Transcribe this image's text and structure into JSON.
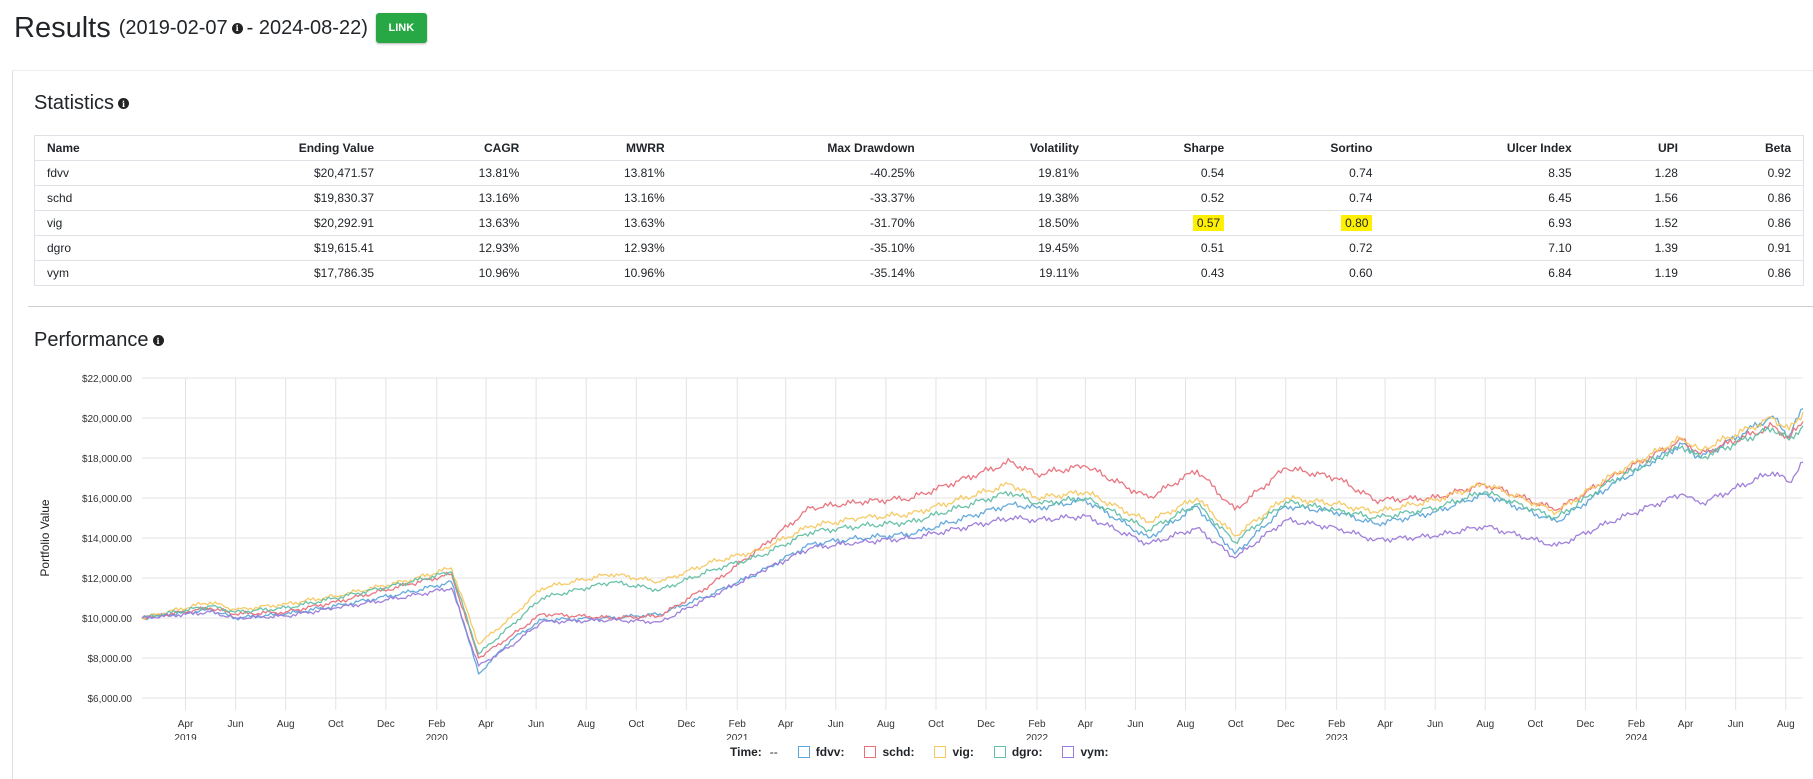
{
  "header": {
    "title": "Results",
    "date_start": "(2019-02-07",
    "date_end": "- 2024-08-22)",
    "link_label": "LINK"
  },
  "statistics": {
    "title": "Statistics",
    "columns": [
      "Name",
      "Ending Value",
      "CAGR",
      "MWRR",
      "Max Drawdown",
      "Volatility",
      "Sharpe",
      "Sortino",
      "Ulcer Index",
      "UPI",
      "Beta"
    ],
    "rows": [
      [
        "fdvv",
        "$20,471.57",
        "13.81%",
        "13.81%",
        "-40.25%",
        "19.81%",
        "0.54",
        "0.74",
        "8.35",
        "1.28",
        "0.92"
      ],
      [
        "schd",
        "$19,830.37",
        "13.16%",
        "13.16%",
        "-33.37%",
        "19.38%",
        "0.52",
        "0.74",
        "6.45",
        "1.56",
        "0.86"
      ],
      [
        "vig",
        "$20,292.91",
        "13.63%",
        "13.63%",
        "-31.70%",
        "18.50%",
        "0.57",
        "0.80",
        "6.93",
        "1.52",
        "0.86"
      ],
      [
        "dgro",
        "$19,615.41",
        "12.93%",
        "12.93%",
        "-35.10%",
        "19.45%",
        "0.51",
        "0.72",
        "7.10",
        "1.39",
        "0.91"
      ],
      [
        "vym",
        "$17,786.35",
        "10.96%",
        "10.96%",
        "-35.14%",
        "19.11%",
        "0.43",
        "0.60",
        "6.84",
        "1.19",
        "0.86"
      ]
    ],
    "highlight_color": "#ffef00",
    "highlighted_cells": [
      [
        2,
        6
      ],
      [
        2,
        7
      ]
    ]
  },
  "performance": {
    "title": "Performance"
  },
  "legend": {
    "time_label": "Time:",
    "time_value": "--",
    "items": [
      {
        "label": "fdvv:",
        "color": "#5da5da"
      },
      {
        "label": "schd:",
        "color": "#e8707a"
      },
      {
        "label": "vig:",
        "color": "#f5c860"
      },
      {
        "label": "dgro:",
        "color": "#63bfa5"
      },
      {
        "label": "vym:",
        "color": "#9b7ad9"
      }
    ]
  },
  "chart_data": {
    "type": "line",
    "ylabel": "Portfolio Value",
    "ylim": [
      6000,
      22000
    ],
    "y_ticks": [
      "$6,000.00",
      "$8,000.00",
      "$10,000.00",
      "$12,000.00",
      "$14,000.00",
      "$16,000.00",
      "$18,000.00",
      "$20,000.00",
      "$22,000.00"
    ],
    "y_tick_values": [
      6000,
      8000,
      10000,
      12000,
      14000,
      16000,
      18000,
      20000,
      22000
    ],
    "x_range": [
      "2019-02-07",
      "2024-08-22"
    ],
    "x_ticks": [
      {
        "date": "2019-04-01",
        "month": "Apr",
        "year": "2019"
      },
      {
        "date": "2019-06-01",
        "month": "Jun"
      },
      {
        "date": "2019-08-01",
        "month": "Aug"
      },
      {
        "date": "2019-10-01",
        "month": "Oct"
      },
      {
        "date": "2019-12-01",
        "month": "Dec"
      },
      {
        "date": "2020-02-01",
        "month": "Feb",
        "year": "2020"
      },
      {
        "date": "2020-04-01",
        "month": "Apr"
      },
      {
        "date": "2020-06-01",
        "month": "Jun"
      },
      {
        "date": "2020-08-01",
        "month": "Aug"
      },
      {
        "date": "2020-10-01",
        "month": "Oct"
      },
      {
        "date": "2020-12-01",
        "month": "Dec"
      },
      {
        "date": "2021-02-01",
        "month": "Feb",
        "year": "2021"
      },
      {
        "date": "2021-04-01",
        "month": "Apr"
      },
      {
        "date": "2021-06-01",
        "month": "Jun"
      },
      {
        "date": "2021-08-01",
        "month": "Aug"
      },
      {
        "date": "2021-10-01",
        "month": "Oct"
      },
      {
        "date": "2021-12-01",
        "month": "Dec"
      },
      {
        "date": "2022-02-01",
        "month": "Feb",
        "year": "2022"
      },
      {
        "date": "2022-04-01",
        "month": "Apr"
      },
      {
        "date": "2022-06-01",
        "month": "Jun"
      },
      {
        "date": "2022-08-01",
        "month": "Aug"
      },
      {
        "date": "2022-10-01",
        "month": "Oct"
      },
      {
        "date": "2022-12-01",
        "month": "Dec"
      },
      {
        "date": "2023-02-01",
        "month": "Feb",
        "year": "2023"
      },
      {
        "date": "2023-04-01",
        "month": "Apr"
      },
      {
        "date": "2023-06-01",
        "month": "Jun"
      },
      {
        "date": "2023-08-01",
        "month": "Aug"
      },
      {
        "date": "2023-10-01",
        "month": "Oct"
      },
      {
        "date": "2023-12-01",
        "month": "Dec"
      },
      {
        "date": "2024-02-01",
        "month": "Feb",
        "year": "2024"
      },
      {
        "date": "2024-04-01",
        "month": "Apr"
      },
      {
        "date": "2024-06-01",
        "month": "Jun"
      },
      {
        "date": "2024-08-01",
        "month": "Aug"
      }
    ],
    "series": [
      {
        "name": "fdvv",
        "color": "#5da5da",
        "points": [
          [
            "2019-02-07",
            10000
          ],
          [
            "2019-05-01",
            10400
          ],
          [
            "2019-06-01",
            10000
          ],
          [
            "2019-08-01",
            10200
          ],
          [
            "2019-10-01",
            10600
          ],
          [
            "2019-12-31",
            11300
          ],
          [
            "2020-02-19",
            11800
          ],
          [
            "2020-03-23",
            7200
          ],
          [
            "2020-05-01",
            8900
          ],
          [
            "2020-06-08",
            9900
          ],
          [
            "2020-09-01",
            10000
          ],
          [
            "2020-10-30",
            10200
          ],
          [
            "2021-01-01",
            11200
          ],
          [
            "2021-03-01",
            12300
          ],
          [
            "2021-05-01",
            13700
          ],
          [
            "2021-07-01",
            14000
          ],
          [
            "2021-09-01",
            14200
          ],
          [
            "2021-12-31",
            15700
          ],
          [
            "2022-02-01",
            15500
          ],
          [
            "2022-04-01",
            15900
          ],
          [
            "2022-06-17",
            14000
          ],
          [
            "2022-08-15",
            15600
          ],
          [
            "2022-09-30",
            13200
          ],
          [
            "2022-12-01",
            15600
          ],
          [
            "2023-02-01",
            15300
          ],
          [
            "2023-03-20",
            14700
          ],
          [
            "2023-06-01",
            15300
          ],
          [
            "2023-07-31",
            16200
          ],
          [
            "2023-10-27",
            14800
          ],
          [
            "2023-12-31",
            16600
          ],
          [
            "2024-03-28",
            18700
          ],
          [
            "2024-04-19",
            18000
          ],
          [
            "2024-07-16",
            20100
          ],
          [
            "2024-08-05",
            19100
          ],
          [
            "2024-08-22",
            20470
          ]
        ]
      },
      {
        "name": "schd",
        "color": "#e8707a",
        "points": [
          [
            "2019-02-07",
            10000
          ],
          [
            "2019-05-01",
            10500
          ],
          [
            "2019-06-01",
            10200
          ],
          [
            "2019-08-01",
            10300
          ],
          [
            "2019-10-01",
            10800
          ],
          [
            "2019-12-31",
            11700
          ],
          [
            "2020-02-19",
            12200
          ],
          [
            "2020-03-23",
            8000
          ],
          [
            "2020-05-01",
            9100
          ],
          [
            "2020-06-08",
            10200
          ],
          [
            "2020-09-01",
            10000
          ],
          [
            "2020-10-30",
            10100
          ],
          [
            "2021-01-01",
            11700
          ],
          [
            "2021-03-01",
            13500
          ],
          [
            "2021-05-01",
            15500
          ],
          [
            "2021-07-01",
            15800
          ],
          [
            "2021-09-01",
            16000
          ],
          [
            "2021-12-31",
            17800
          ],
          [
            "2022-02-01",
            17200
          ],
          [
            "2022-04-01",
            17600
          ],
          [
            "2022-06-17",
            16000
          ],
          [
            "2022-08-15",
            17400
          ],
          [
            "2022-09-30",
            15400
          ],
          [
            "2022-12-01",
            17500
          ],
          [
            "2023-02-01",
            17000
          ],
          [
            "2023-03-20",
            15900
          ],
          [
            "2023-06-01",
            16000
          ],
          [
            "2023-07-31",
            16700
          ],
          [
            "2023-10-27",
            15400
          ],
          [
            "2023-12-31",
            17000
          ],
          [
            "2024-03-28",
            18900
          ],
          [
            "2024-04-19",
            18200
          ],
          [
            "2024-07-16",
            19600
          ],
          [
            "2024-08-05",
            19000
          ],
          [
            "2024-08-22",
            19830
          ]
        ]
      },
      {
        "name": "vig",
        "color": "#f5c860",
        "points": [
          [
            "2019-02-07",
            10000
          ],
          [
            "2019-05-01",
            10800
          ],
          [
            "2019-06-01",
            10400
          ],
          [
            "2019-08-01",
            10700
          ],
          [
            "2019-10-01",
            11100
          ],
          [
            "2019-12-31",
            11900
          ],
          [
            "2020-02-19",
            12500
          ],
          [
            "2020-03-23",
            8700
          ],
          [
            "2020-05-01",
            10000
          ],
          [
            "2020-06-08",
            11500
          ],
          [
            "2020-09-01",
            12200
          ],
          [
            "2020-10-30",
            11800
          ],
          [
            "2021-01-01",
            12800
          ],
          [
            "2021-03-01",
            13400
          ],
          [
            "2021-05-01",
            14600
          ],
          [
            "2021-07-01",
            15000
          ],
          [
            "2021-09-01",
            15200
          ],
          [
            "2021-12-31",
            16700
          ],
          [
            "2022-02-01",
            16000
          ],
          [
            "2022-04-01",
            16300
          ],
          [
            "2022-06-17",
            14800
          ],
          [
            "2022-08-15",
            16000
          ],
          [
            "2022-09-30",
            14100
          ],
          [
            "2022-12-01",
            16000
          ],
          [
            "2023-02-01",
            15700
          ],
          [
            "2023-03-20",
            15300
          ],
          [
            "2023-06-01",
            15900
          ],
          [
            "2023-07-31",
            16700
          ],
          [
            "2023-10-27",
            15300
          ],
          [
            "2023-12-31",
            17100
          ],
          [
            "2024-03-28",
            19000
          ],
          [
            "2024-04-19",
            18400
          ],
          [
            "2024-07-16",
            20000
          ],
          [
            "2024-08-05",
            19400
          ],
          [
            "2024-08-22",
            20290
          ]
        ]
      },
      {
        "name": "dgro",
        "color": "#63bfa5",
        "points": [
          [
            "2019-02-07",
            10000
          ],
          [
            "2019-05-01",
            10600
          ],
          [
            "2019-06-01",
            10300
          ],
          [
            "2019-08-01",
            10500
          ],
          [
            "2019-10-01",
            11000
          ],
          [
            "2019-12-31",
            11800
          ],
          [
            "2020-02-19",
            12300
          ],
          [
            "2020-03-23",
            8200
          ],
          [
            "2020-05-01",
            9600
          ],
          [
            "2020-06-08",
            11000
          ],
          [
            "2020-09-01",
            11800
          ],
          [
            "2020-10-30",
            11400
          ],
          [
            "2021-01-01",
            12400
          ],
          [
            "2021-03-01",
            13100
          ],
          [
            "2021-05-01",
            14300
          ],
          [
            "2021-07-01",
            14600
          ],
          [
            "2021-09-01",
            14800
          ],
          [
            "2021-12-31",
            16300
          ],
          [
            "2022-02-01",
            15700
          ],
          [
            "2022-04-01",
            16000
          ],
          [
            "2022-06-17",
            14400
          ],
          [
            "2022-08-15",
            15700
          ],
          [
            "2022-09-30",
            13800
          ],
          [
            "2022-12-01",
            15800
          ],
          [
            "2023-02-01",
            15400
          ],
          [
            "2023-03-20",
            15000
          ],
          [
            "2023-06-01",
            15500
          ],
          [
            "2023-07-31",
            16300
          ],
          [
            "2023-10-27",
            15000
          ],
          [
            "2023-12-31",
            16800
          ],
          [
            "2024-03-28",
            18600
          ],
          [
            "2024-04-19",
            18000
          ],
          [
            "2024-07-16",
            19500
          ],
          [
            "2024-08-05",
            18900
          ],
          [
            "2024-08-22",
            19615
          ]
        ]
      },
      {
        "name": "vym",
        "color": "#9b7ad9",
        "points": [
          [
            "2019-02-07",
            10000
          ],
          [
            "2019-05-01",
            10300
          ],
          [
            "2019-06-01",
            10000
          ],
          [
            "2019-08-01",
            10100
          ],
          [
            "2019-10-01",
            10500
          ],
          [
            "2019-12-31",
            11100
          ],
          [
            "2020-02-19",
            11500
          ],
          [
            "2020-03-23",
            7600
          ],
          [
            "2020-05-01",
            8600
          ],
          [
            "2020-06-08",
            9800
          ],
          [
            "2020-09-01",
            9900
          ],
          [
            "2020-10-30",
            9800
          ],
          [
            "2021-01-01",
            11100
          ],
          [
            "2021-03-01",
            12300
          ],
          [
            "2021-05-01",
            13500
          ],
          [
            "2021-07-01",
            13800
          ],
          [
            "2021-09-01",
            14000
          ],
          [
            "2021-12-31",
            15000
          ],
          [
            "2022-02-01",
            14900
          ],
          [
            "2022-04-01",
            15100
          ],
          [
            "2022-06-17",
            13700
          ],
          [
            "2022-08-15",
            14500
          ],
          [
            "2022-09-30",
            13000
          ],
          [
            "2022-12-01",
            14900
          ],
          [
            "2023-02-01",
            14500
          ],
          [
            "2023-03-20",
            13900
          ],
          [
            "2023-06-01",
            14100
          ],
          [
            "2023-07-31",
            14600
          ],
          [
            "2023-10-27",
            13600
          ],
          [
            "2023-12-31",
            14800
          ],
          [
            "2024-03-28",
            16200
          ],
          [
            "2024-04-19",
            15700
          ],
          [
            "2024-07-16",
            17300
          ],
          [
            "2024-08-05",
            16800
          ],
          [
            "2024-08-22",
            17790
          ]
        ]
      }
    ]
  }
}
